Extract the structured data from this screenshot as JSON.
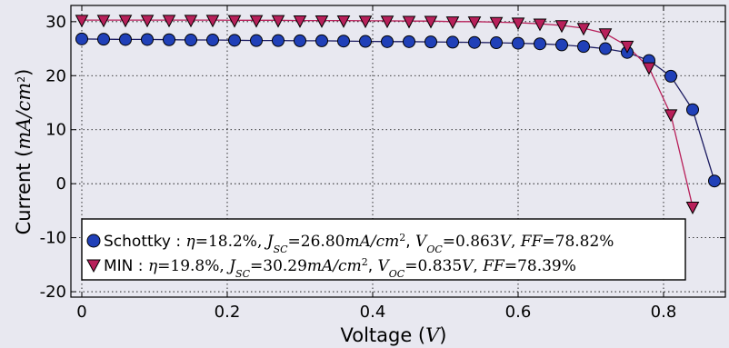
{
  "colors": {
    "background": "#e8e8f0",
    "plot_background": "#e8e8f0",
    "grid": "#000000",
    "schottky": "#2040b8",
    "schottky_line": "#1a1a60",
    "min": "#b8205a",
    "min_line": "#b8205a"
  },
  "chart_data": {
    "type": "line",
    "xlabel": "Voltage (V)",
    "ylabel": "Current (mA/cm2)",
    "xlabel_parts": {
      "text": "Voltage (",
      "math": "V",
      "close": ")"
    },
    "ylabel_parts": {
      "text": "Current (",
      "math": "mA/cm",
      "sup": "2",
      "close": ")"
    },
    "xlim": [
      -0.015,
      0.885
    ],
    "ylim": [
      -21,
      33
    ],
    "xticks": [
      0,
      0.2,
      0.4,
      0.6,
      0.8
    ],
    "xtick_labels": [
      "0",
      "0.2",
      "0.4",
      "0.6",
      "0.8"
    ],
    "yticks": [
      -20,
      -10,
      0,
      10,
      20,
      30
    ],
    "ytick_labels": [
      "-20",
      "-10",
      "0",
      "10",
      "20",
      "30"
    ],
    "grid": true,
    "legend_position": "lower-left",
    "series": [
      {
        "name": "Schottky",
        "marker": "circle",
        "legend": {
          "name": "Schottky",
          "eta_label": "η",
          "eta_value": "18.2%",
          "jsc_label": "J",
          "jsc_sub": "SC",
          "jsc_value": "26.80",
          "jsc_unit": "mA/cm",
          "jsc_unit_sup": "2",
          "voc_label": "V",
          "voc_sub": "OC",
          "voc_value": "0.863",
          "voc_unit": "V",
          "ff_label": "FF",
          "ff_value": "78.82%"
        },
        "x": [
          0,
          0.03,
          0.06,
          0.09,
          0.12,
          0.15,
          0.18,
          0.21,
          0.24,
          0.27,
          0.3,
          0.33,
          0.36,
          0.39,
          0.42,
          0.45,
          0.48,
          0.51,
          0.54,
          0.57,
          0.6,
          0.63,
          0.66,
          0.69,
          0.72,
          0.75,
          0.78,
          0.81,
          0.84,
          0.87
        ],
        "y": [
          26.8,
          26.75,
          26.7,
          26.7,
          26.65,
          26.6,
          26.6,
          26.55,
          26.5,
          26.5,
          26.45,
          26.45,
          26.4,
          26.35,
          26.3,
          26.3,
          26.25,
          26.2,
          26.15,
          26.1,
          26.0,
          25.9,
          25.7,
          25.4,
          25.0,
          24.3,
          22.8,
          19.9,
          13.7,
          0.5
        ]
      },
      {
        "name": "MIN",
        "marker": "triangle-down",
        "legend": {
          "name": "MIN",
          "eta_label": "η",
          "eta_value": "19.8%",
          "jsc_label": "J",
          "jsc_sub": "SC",
          "jsc_value": "30.29",
          "jsc_unit": "mA/cm",
          "jsc_unit_sup": "2",
          "voc_label": "V",
          "voc_sub": "OC",
          "voc_value": "0.835",
          "voc_unit": "V",
          "ff_label": "FF",
          "ff_value": "78.39%"
        },
        "x": [
          0,
          0.03,
          0.06,
          0.09,
          0.12,
          0.15,
          0.18,
          0.21,
          0.24,
          0.27,
          0.3,
          0.33,
          0.36,
          0.39,
          0.42,
          0.45,
          0.48,
          0.51,
          0.54,
          0.57,
          0.6,
          0.63,
          0.66,
          0.69,
          0.72,
          0.75,
          0.78,
          0.81,
          0.84
        ],
        "y": [
          30.3,
          30.3,
          30.3,
          30.3,
          30.3,
          30.3,
          30.3,
          30.25,
          30.25,
          30.25,
          30.2,
          30.2,
          30.2,
          30.15,
          30.15,
          30.1,
          30.1,
          30.0,
          30.0,
          29.9,
          29.8,
          29.6,
          29.3,
          28.8,
          27.8,
          25.5,
          21.5,
          12.8,
          -4.3
        ]
      }
    ]
  }
}
